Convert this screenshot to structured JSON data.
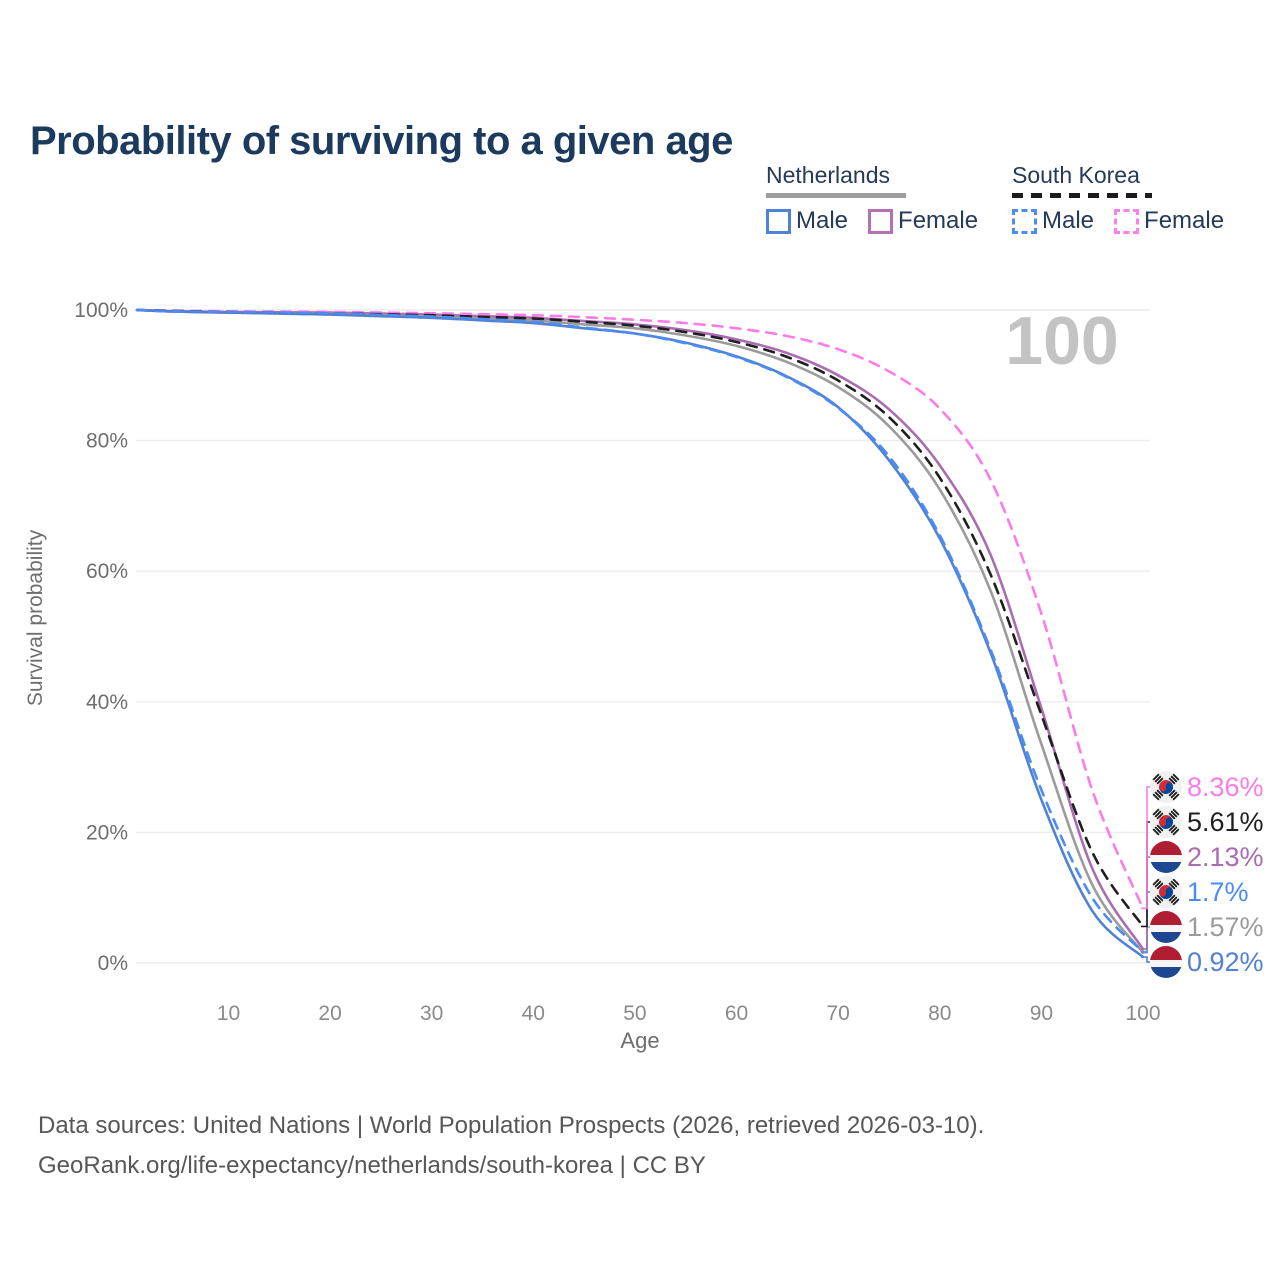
{
  "title": "Probability of surviving to a given age",
  "legend": {
    "groups": [
      {
        "country": "Netherlands",
        "line_style": "solid",
        "line_color": "#9e9e9e",
        "items": [
          {
            "label": "Male",
            "color": "#4d82d6",
            "line_style": "solid"
          },
          {
            "label": "Female",
            "color": "#b472b5",
            "line_style": "solid"
          }
        ]
      },
      {
        "country": "South Korea",
        "line_style": "dashed",
        "line_color": "#1b1b1b",
        "items": [
          {
            "label": "Male",
            "color": "#4d8df2",
            "line_style": "dashed"
          },
          {
            "label": "Female",
            "color": "#fc7ff0",
            "line_style": "dashed"
          }
        ]
      }
    ]
  },
  "chart_data": {
    "type": "line",
    "title": "Probability of surviving to a given age",
    "xlabel": "Age",
    "ylabel": "Survival probability",
    "xlim": [
      1,
      100
    ],
    "ylim": [
      0,
      100
    ],
    "x_ticks": [
      10,
      20,
      30,
      40,
      50,
      60,
      70,
      80,
      90,
      100
    ],
    "y_ticks": [
      0,
      20,
      40,
      60,
      80,
      100
    ],
    "y_tick_suffix": "%",
    "grid": "horizontal",
    "corner_annotation": "100",
    "x": [
      1,
      5,
      10,
      15,
      20,
      25,
      30,
      35,
      40,
      45,
      50,
      55,
      60,
      65,
      70,
      75,
      80,
      85,
      90,
      95,
      100
    ],
    "series": [
      {
        "name": "South Korea Female",
        "country": "south-korea",
        "sex": "female",
        "color": "#fb7ce9",
        "line_style": "dashed",
        "end_label": "8.36%",
        "values": [
          100,
          99.9,
          99.8,
          99.75,
          99.7,
          99.6,
          99.5,
          99.35,
          99.2,
          98.9,
          98.5,
          98.0,
          97.2,
          96.0,
          94.0,
          90.6,
          84.9,
          74.0,
          53.5,
          26.5,
          8.36
        ]
      },
      {
        "name": "South Korea All",
        "country": "south-korea",
        "sex": "all",
        "color": "#1f1f1f",
        "line_style": "dashed",
        "end_label": "5.61%",
        "values": [
          100,
          99.85,
          99.7,
          99.6,
          99.5,
          99.35,
          99.2,
          98.95,
          98.7,
          98.2,
          97.6,
          96.6,
          95.1,
          92.8,
          89.2,
          83.6,
          74.3,
          59.5,
          38.0,
          17.0,
          5.61
        ]
      },
      {
        "name": "Netherlands Female",
        "country": "netherlands",
        "sex": "female",
        "color": "#aa6cb1",
        "line_style": "solid",
        "end_label": "2.13%",
        "values": [
          100,
          99.8,
          99.7,
          99.65,
          99.6,
          99.45,
          99.3,
          99.05,
          98.8,
          98.3,
          97.8,
          96.9,
          95.5,
          93.4,
          90.0,
          84.8,
          76.2,
          62.5,
          39.0,
          14.5,
          2.13
        ]
      },
      {
        "name": "South Korea Male",
        "country": "south-korea",
        "sex": "male",
        "color": "#4b8cf4",
        "line_style": "dashed",
        "end_label": "1.7%",
        "values": [
          100,
          99.8,
          99.7,
          99.6,
          99.5,
          99.25,
          99.0,
          98.6,
          98.2,
          97.3,
          96.4,
          94.9,
          92.8,
          89.7,
          85.0,
          77.6,
          65.5,
          48.0,
          26.5,
          10.0,
          1.7
        ]
      },
      {
        "name": "Netherlands All",
        "country": "netherlands",
        "sex": "all",
        "color": "#9b9b9b",
        "line_style": "solid",
        "end_label": "1.57%",
        "values": [
          100,
          99.75,
          99.6,
          99.5,
          99.4,
          99.2,
          99.0,
          98.7,
          98.4,
          97.8,
          97.2,
          96.1,
          94.5,
          92.0,
          88.2,
          82.2,
          72.5,
          57.0,
          33.5,
          12.0,
          1.57
        ]
      },
      {
        "name": "Netherlands Male",
        "country": "netherlands",
        "sex": "male",
        "color": "#5181d2",
        "line_style": "solid",
        "end_label": "0.92%",
        "values": [
          100,
          99.75,
          99.6,
          99.45,
          99.3,
          99.05,
          98.8,
          98.4,
          98.0,
          97.2,
          96.4,
          95.0,
          92.9,
          89.8,
          85.1,
          77.0,
          65.0,
          47.5,
          25.0,
          8.0,
          0.92
        ]
      }
    ]
  },
  "footer": {
    "line1": "Data sources: United Nations | World Population Prospects (2026, retrieved 2026-03-10).",
    "line2": "GeoRank.org/life-expectancy/netherlands/south-korea | CC BY"
  }
}
